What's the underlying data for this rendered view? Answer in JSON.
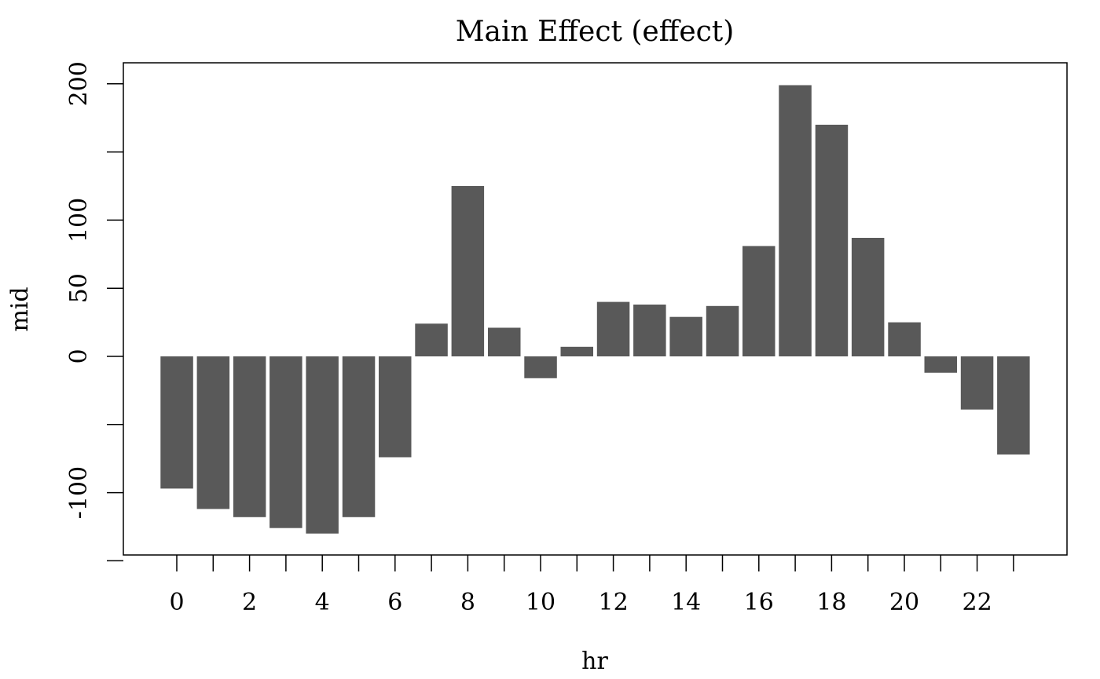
{
  "chart_data": {
    "type": "bar",
    "title": "Main Effect (effect)",
    "xlabel": "hr",
    "ylabel": "mid",
    "categories": [
      "0",
      "1",
      "2",
      "3",
      "4",
      "5",
      "6",
      "7",
      "8",
      "9",
      "10",
      "11",
      "12",
      "13",
      "14",
      "15",
      "16",
      "17",
      "18",
      "19",
      "20",
      "21",
      "22",
      "23"
    ],
    "values": [
      -97,
      -112,
      -118,
      -126,
      -130,
      -118,
      -74,
      24,
      125,
      21,
      -16,
      7,
      40,
      38,
      29,
      37,
      81,
      199,
      170,
      87,
      25,
      -12,
      -39,
      -72
    ],
    "x_tick_labels": [
      "0",
      "2",
      "4",
      "6",
      "8",
      "10",
      "12",
      "14",
      "16",
      "18",
      "20",
      "22"
    ],
    "y_ticks": [
      -150,
      -100,
      -50,
      0,
      50,
      100,
      150,
      200
    ],
    "y_tick_labels": [
      "",
      "-100",
      "",
      "0",
      "50",
      "100",
      "",
      "200"
    ],
    "ylim": [
      -145,
      215
    ],
    "bar_color": "#595959",
    "grid": false,
    "legend": "none"
  }
}
